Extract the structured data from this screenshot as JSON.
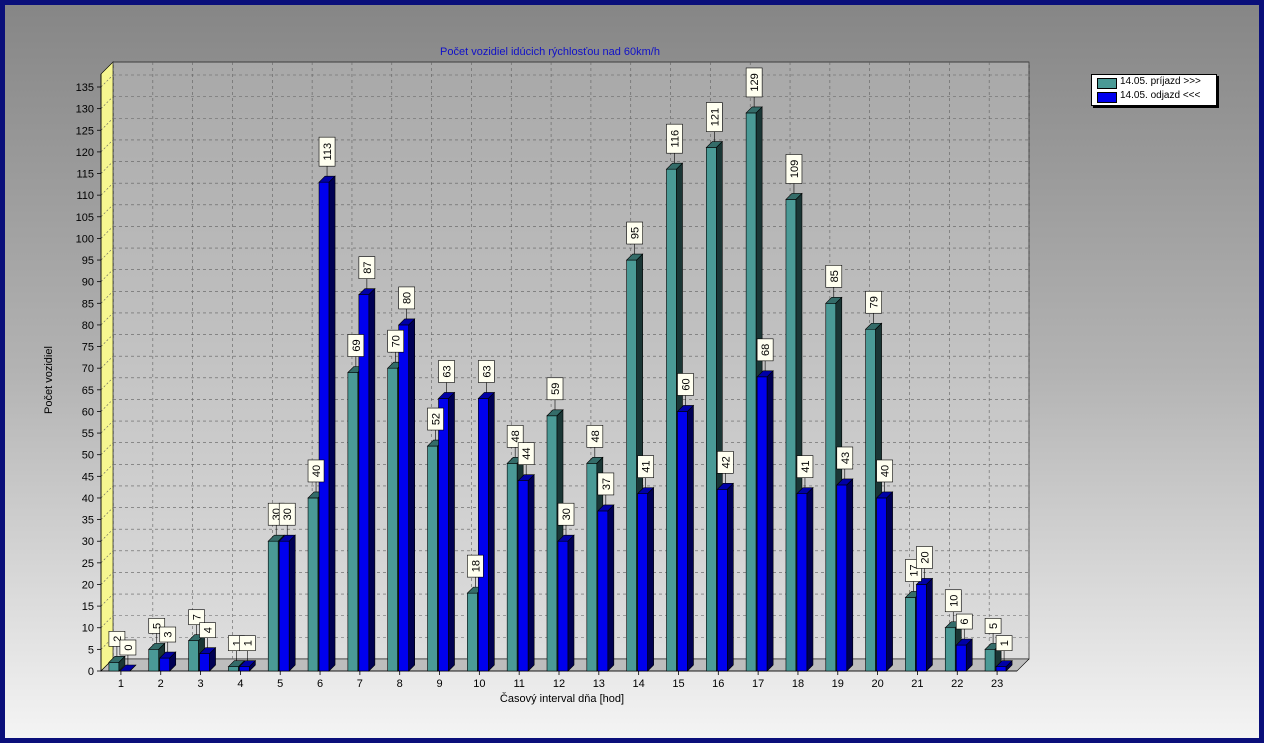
{
  "chart_data": {
    "type": "bar",
    "title": "Počet vozidiel idúcich rýchlosťou nad 60km/h",
    "xlabel": "Časový interval dňa [hod]",
    "ylabel": "Počet vozidiel",
    "ylim": [
      0,
      135
    ],
    "ytick_step": 5,
    "grid": true,
    "legend_position": "top-right",
    "categories": [
      "1",
      "2",
      "3",
      "4",
      "5",
      "6",
      "7",
      "8",
      "9",
      "10",
      "11",
      "12",
      "13",
      "14",
      "15",
      "16",
      "17",
      "18",
      "19",
      "20",
      "21",
      "22",
      "23"
    ],
    "series": [
      {
        "name": "14.05.  príjazd >>>",
        "color": "#4a9a96",
        "values": [
          2,
          5,
          7,
          1,
          30,
          40,
          69,
          70,
          52,
          18,
          48,
          59,
          48,
          95,
          116,
          121,
          129,
          109,
          85,
          79,
          17,
          10,
          5
        ]
      },
      {
        "name": "14.05.  odjazd <<<",
        "color": "#0000ee",
        "values": [
          0,
          3,
          4,
          1,
          30,
          113,
          87,
          80,
          63,
          63,
          44,
          30,
          37,
          41,
          60,
          42,
          68,
          41,
          43,
          40,
          20,
          6,
          1
        ]
      }
    ]
  }
}
